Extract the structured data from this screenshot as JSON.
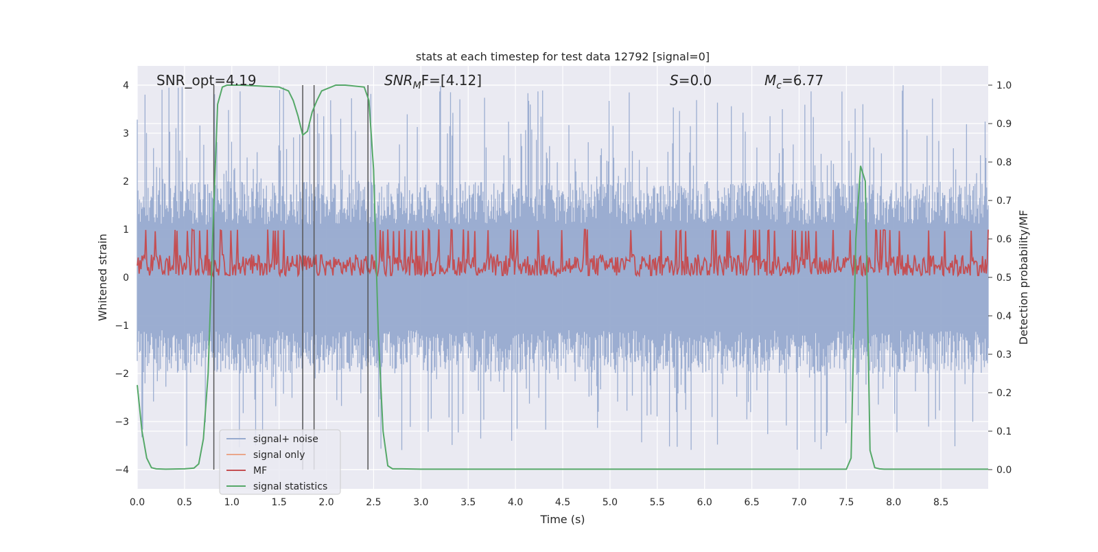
{
  "chart_data": {
    "type": "line",
    "title": "stats at each timestep for test data 12792 [signal=0]",
    "xlabel": "Time (s)",
    "ylabel_left": "Whitened strain",
    "ylabel_right": "Detection probability/MF",
    "xlim": [
      0.0,
      9.0
    ],
    "ylim_left": [
      -4.4,
      4.4
    ],
    "ylim_right": [
      -0.05,
      1.05
    ],
    "xticks": [
      "0.0",
      "0.5",
      "1.0",
      "1.5",
      "2.0",
      "2.5",
      "3.0",
      "3.5",
      "4.0",
      "4.5",
      "5.0",
      "5.5",
      "6.0",
      "6.5",
      "7.0",
      "7.5",
      "8.0",
      "8.5"
    ],
    "yticks_left": [
      "−4",
      "−3",
      "−2",
      "−1",
      "0",
      "1",
      "2",
      "3",
      "4"
    ],
    "yticks_right": [
      "0.0",
      "0.1",
      "0.2",
      "0.3",
      "0.4",
      "0.5",
      "0.6",
      "0.7",
      "0.8",
      "0.9",
      "1.0"
    ],
    "grid": true,
    "legend_position": "lower-left",
    "annotations": {
      "snr_opt": "SNR_opt=4.19",
      "snr_mf_base": "SNR",
      "snr_mf_sub": "M",
      "snr_mf_rest": "F=[4.12]",
      "s_base": "S",
      "s_rest": "=0.0",
      "mc_base": "M",
      "mc_sub": "c",
      "mc_rest": "=6.77"
    },
    "colors": {
      "background": "#eaeaf2",
      "grid": "#ffffff",
      "signal_noise": "#97aacf",
      "signal_only": "#eaa68a",
      "mf": "#c44e52",
      "signal_statistics": "#55a868",
      "vlines": "#555555"
    },
    "series": [
      {
        "name": "signal+ noise",
        "axis": "left",
        "kind": "noise",
        "envelope": {
          "max_typical": 2.0,
          "max_peak": 4.0,
          "min_typical": -2.0,
          "min_peak": -4.0
        },
        "x_range": [
          0.0,
          9.0
        ]
      },
      {
        "name": "signal only",
        "axis": "left",
        "x": [],
        "y": []
      },
      {
        "name": "MF",
        "axis": "right",
        "kind": "noise",
        "envelope": {
          "center": 0.53,
          "low": 0.505,
          "high": 0.62,
          "peak": 0.63
        },
        "x_range": [
          0.0,
          9.0
        ]
      },
      {
        "name": "signal statistics",
        "axis": "right",
        "x": [
          0.0,
          0.05,
          0.1,
          0.15,
          0.2,
          0.3,
          0.5,
          0.6,
          0.65,
          0.7,
          0.75,
          0.8,
          0.85,
          0.9,
          0.95,
          1.0,
          1.1,
          1.5,
          1.6,
          1.65,
          1.7,
          1.75,
          1.8,
          1.85,
          1.9,
          1.95,
          2.0,
          2.05,
          2.1,
          2.2,
          2.4,
          2.45,
          2.5,
          2.55,
          2.6,
          2.65,
          2.7,
          2.8,
          3.0,
          3.5,
          4.0,
          5.0,
          6.0,
          7.0,
          7.5,
          7.55,
          7.6,
          7.65,
          7.7,
          7.75,
          7.8,
          7.85,
          7.9,
          8.0,
          8.5,
          9.0
        ],
        "y": [
          0.22,
          0.1,
          0.03,
          0.005,
          0.002,
          0.001,
          0.002,
          0.004,
          0.015,
          0.08,
          0.25,
          0.62,
          0.95,
          0.995,
          1.0,
          1.0,
          1.0,
          0.995,
          0.985,
          0.96,
          0.92,
          0.87,
          0.88,
          0.93,
          0.96,
          0.985,
          0.99,
          0.995,
          1.0,
          1.0,
          0.995,
          0.96,
          0.78,
          0.35,
          0.1,
          0.01,
          0.002,
          0.002,
          0.001,
          0.001,
          0.001,
          0.001,
          0.001,
          0.001,
          0.001,
          0.03,
          0.6,
          0.79,
          0.75,
          0.05,
          0.005,
          0.002,
          0.001,
          0.001,
          0.001,
          0.001
        ]
      }
    ],
    "vertical_lines_x": [
      0.81,
      1.75,
      1.87,
      2.44
    ],
    "vertical_lines_range_left": [
      -4.0,
      4.0
    ]
  }
}
